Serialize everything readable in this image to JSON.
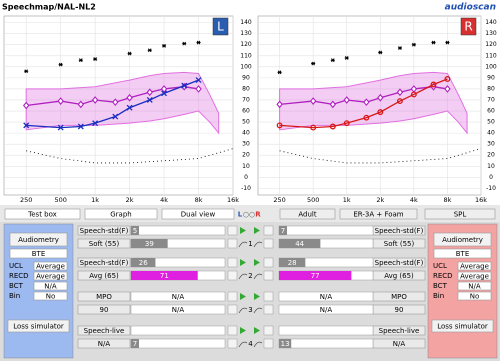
{
  "header": {
    "title": "Speechmap/NAL-NL2",
    "logo": "audioscan"
  },
  "chart_data": [
    {
      "type": "line",
      "side_button": "L",
      "button_color": "#2a5db0",
      "xscale": "log",
      "xlim": [
        160,
        16000
      ],
      "xticks": [
        250,
        500,
        {
          "value": 1000,
          "label": "1k"
        },
        {
          "value": 2000,
          "label": "2k"
        },
        {
          "value": 4000,
          "label": "4k"
        },
        {
          "value": 8000,
          "label": "8k"
        },
        {
          "value": 16000,
          "label": "16k"
        }
      ],
      "ylim": [
        -16,
        146
      ],
      "yticks": [
        140,
        130,
        120,
        110,
        100,
        90,
        80,
        70,
        60,
        50,
        40,
        30,
        20,
        10,
        0,
        -10
      ],
      "grid": true,
      "band": {
        "color": "#e070e0",
        "x": [
          250,
          500,
          1000,
          2000,
          3000,
          4000,
          6000,
          8000,
          10000,
          12000
        ],
        "upper": [
          80,
          80,
          82,
          88,
          92,
          94,
          95,
          94,
          75,
          58
        ],
        "lower": [
          43,
          47,
          47,
          49,
          51,
          53,
          57,
          60,
          50,
          40
        ]
      },
      "series": [
        {
          "marker": "diamond",
          "color": "#b020c0",
          "x": [
            250,
            500,
            750,
            1000,
            1500,
            2000,
            3000,
            4000,
            6000,
            8000
          ],
          "values": [
            65,
            69,
            66,
            70,
            68,
            72,
            77,
            80,
            82,
            80
          ]
        },
        {
          "marker": "x",
          "color": "#1a2ec0",
          "x": [
            250,
            500,
            750,
            1000,
            1500,
            2000,
            3000,
            4000,
            6000,
            8000
          ],
          "values": [
            47,
            45,
            46,
            49,
            55,
            63,
            70,
            76,
            83,
            88
          ]
        },
        {
          "marker": "asterisk",
          "color": "#000000",
          "x": [
            250,
            500,
            750,
            1000,
            2000,
            3000,
            4000,
            6000,
            8000
          ],
          "values": [
            96,
            102,
            106,
            107,
            112,
            115,
            119,
            121,
            122
          ]
        },
        {
          "marker": "dot",
          "color": "#000000",
          "x": [
            250,
            500,
            1000,
            2000,
            4000,
            8000,
            16000
          ],
          "values": [
            24,
            17,
            13,
            13,
            15,
            17,
            26
          ]
        }
      ]
    },
    {
      "type": "line",
      "side_button": "R",
      "button_color": "#d83030",
      "xscale": "log",
      "xlim": [
        160,
        16000
      ],
      "xticks": [
        250,
        500,
        {
          "value": 1000,
          "label": "1k"
        },
        {
          "value": 2000,
          "label": "2k"
        },
        {
          "value": 4000,
          "label": "4k"
        },
        {
          "value": 8000,
          "label": "8k"
        },
        {
          "value": 16000,
          "label": "16k"
        }
      ],
      "ylim": [
        -16,
        146
      ],
      "yticks": [
        140,
        130,
        120,
        110,
        100,
        90,
        80,
        70,
        60,
        50,
        40,
        30,
        20,
        10,
        0,
        -10
      ],
      "grid": true,
      "band": {
        "color": "#e070e0",
        "x": [
          250,
          500,
          1000,
          2000,
          3000,
          4000,
          6000,
          8000,
          10000,
          12000
        ],
        "upper": [
          80,
          80,
          82,
          88,
          92,
          94,
          95,
          94,
          75,
          58
        ],
        "lower": [
          43,
          47,
          47,
          49,
          51,
          53,
          57,
          60,
          50,
          40
        ]
      },
      "series": [
        {
          "marker": "diamond",
          "color": "#b020c0",
          "x": [
            250,
            500,
            750,
            1000,
            1500,
            2000,
            3000,
            4000,
            6000,
            8000
          ],
          "values": [
            66,
            69,
            66,
            70,
            68,
            72,
            77,
            80,
            82,
            80
          ]
        },
        {
          "marker": "o",
          "color": "#d81818",
          "x": [
            250,
            500,
            750,
            1000,
            1500,
            2000,
            3000,
            4000,
            6000,
            8000
          ],
          "values": [
            47,
            45,
            46,
            49,
            54,
            59,
            69,
            75,
            84,
            89
          ]
        },
        {
          "marker": "asterisk",
          "color": "#000000",
          "x": [
            250,
            500,
            750,
            1000,
            2000,
            3000,
            4000,
            6000,
            8000
          ],
          "values": [
            95,
            103,
            106,
            108,
            113,
            117,
            120,
            122,
            122
          ]
        },
        {
          "marker": "dot",
          "color": "#000000",
          "x": [
            250,
            500,
            1000,
            2000,
            4000,
            8000,
            16000
          ],
          "values": [
            24,
            17,
            13,
            13,
            15,
            17,
            26
          ]
        }
      ]
    }
  ],
  "toolbar": {
    "test_box": "Test box",
    "graph": "Graph",
    "dual_view": "Dual view",
    "ear_left": "L",
    "ear_right": "R",
    "age": "Adult",
    "transducer": "ER-3A + Foam",
    "scale": "SPL"
  },
  "left_panel": {
    "color": "#9cb9f0",
    "audiometry": "Audiometry",
    "instrument": "BTE",
    "rows": [
      [
        "UCL",
        "Average"
      ],
      [
        "RECD",
        "Average"
      ],
      [
        "BCT",
        "N/A"
      ],
      [
        "Bin",
        "No"
      ]
    ],
    "loss_simulator": "Loss simulator"
  },
  "right_panel": {
    "color": "#f4a3a3",
    "audiometry": "Audiometry",
    "instrument": "BTE",
    "rows": [
      [
        "UCL",
        "Average"
      ],
      [
        "RECD",
        "Average"
      ],
      [
        "BCT",
        "N/A"
      ],
      [
        "Bin",
        "No"
      ]
    ],
    "loss_simulator": "Loss simulator"
  },
  "tests": [
    {
      "number": "1",
      "level_color": "#8a8a8a",
      "left": {
        "stimulus": "Speech-std(F)",
        "level": "Soft (55)",
        "top": 5,
        "bottom": 39
      },
      "right": {
        "stimulus": "Speech-std(F)",
        "level": "Soft (55)",
        "top": 7,
        "bottom": 44
      }
    },
    {
      "number": "2",
      "level_color": "#e020e0",
      "left": {
        "stimulus": "Speech-std(F)",
        "level": "Avg (65)",
        "top": 26,
        "bottom": 71
      },
      "right": {
        "stimulus": "Speech-std(F)",
        "level": "Avg (65)",
        "top": 28,
        "bottom": 77
      }
    },
    {
      "number": "3",
      "level_color": "#8a8a8a",
      "left": {
        "stimulus": "MPO",
        "level": "90",
        "top": "N/A",
        "bottom": "N/A"
      },
      "right": {
        "stimulus": "MPO",
        "level": "90",
        "top": "N/A",
        "bottom": "N/A"
      }
    },
    {
      "number": "4",
      "level_color": "#8a8a8a",
      "left": {
        "stimulus": "Speech-live",
        "level": "N/A",
        "bottom": 7
      },
      "right": {
        "stimulus": "Speech-live",
        "level": "N/A",
        "bottom": 13
      }
    }
  ]
}
